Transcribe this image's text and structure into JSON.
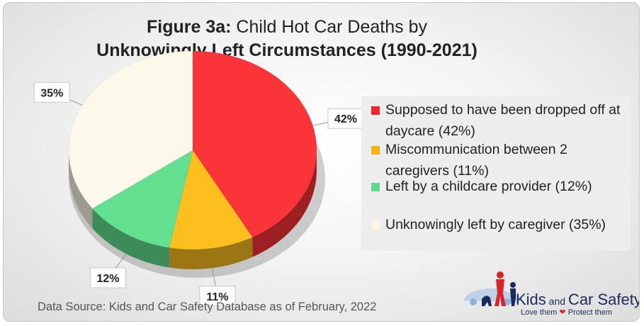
{
  "title": {
    "prefix": "Figure 3a:",
    "line1": " Child Hot Car Deaths by",
    "line2": "Unknowingly Left Circumstances (1990-2021)"
  },
  "chart_data": {
    "type": "pie",
    "title": "Figure 3a: Child Hot Car Deaths by Unknowingly Left Circumstances (1990-2021)",
    "legend_position": "right",
    "slices": [
      {
        "label": "Supposed to have been dropped off at daycare (42%)",
        "value": 42,
        "data_label": "42%",
        "color": "#fb3437"
      },
      {
        "label": "Miscommunication between 2 caregivers (11%)",
        "value": 11,
        "data_label": "11%",
        "color": "#fcbf1e"
      },
      {
        "label": "Left by a childcare provider (12%)",
        "value": 12,
        "data_label": "12%",
        "color": "#63e08f"
      },
      {
        "label": "Unknowingly left by caregiver (35%)",
        "value": 35,
        "data_label": "35%",
        "color": "#fcf8ea"
      }
    ]
  },
  "legend": {
    "items": [
      {
        "label": "Supposed to have been dropped off at daycare (42%)",
        "color": "#f2262b"
      },
      {
        "label": "Miscommunication between 2 caregivers (11%)",
        "color": "#f5b40f"
      },
      {
        "label": "Left by a childcare provider (12%)",
        "color": "#5ddb8a"
      },
      {
        "label": "Unknowingly left by caregiver (35%)",
        "color": "#fbf6e4"
      }
    ]
  },
  "source": "Data Source: Kids and Car Safety Database as of February, 2022",
  "logo": {
    "kids": "Kids",
    "and": " and ",
    "car_safety": "Car Safety",
    "tagline_a": "Love them ",
    "tagline_b": " Protect them",
    "heart_color": "#e3262b"
  }
}
